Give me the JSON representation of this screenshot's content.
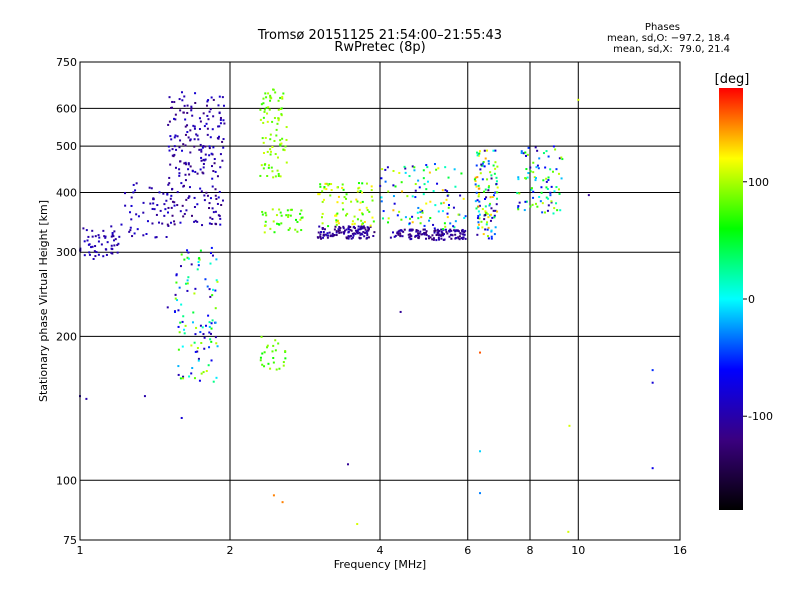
{
  "header": {
    "title_line1": "Tromsø 20151125 21:54:00–21:55:43",
    "title_line2": "RwPretec (8p)"
  },
  "stats": {
    "heading": "Phases",
    "line_o": "mean, sd,O: −97.2, 18.4",
    "line_x": "mean, sd,X:  79.0, 21.4"
  },
  "colorbar": {
    "unit_label": "[deg]",
    "range": [
      -180,
      180
    ],
    "ticks": [
      100,
      0,
      -100
    ],
    "colors": [
      "#000000",
      "#3a0080",
      "#0000ff",
      "#00ffff",
      "#00ff00",
      "#ffff00",
      "#ff0000"
    ]
  },
  "chart_data": {
    "type": "scatter",
    "title": "Tromsø 20151125 21:54:00–21:55:43",
    "subtitle": "RwPretec (8p)",
    "xlabel": "Frequency [MHz]",
    "ylabel": "Stationary phase Virtual Height [km]",
    "xscale": "log",
    "yscale": "log",
    "xlim": [
      1,
      16
    ],
    "ylim": [
      75,
      750
    ],
    "xticks": [
      1,
      2,
      4,
      6,
      8,
      10,
      16
    ],
    "yticks": [
      75,
      100,
      200,
      300,
      400,
      500,
      600,
      750
    ],
    "grid": true,
    "color_by": "phase [deg]",
    "clusters": [
      {
        "x": [
          1.0,
          1.2
        ],
        "y": [
          290,
          340
        ],
        "phase": [
          -110,
          -85
        ],
        "points": 55
      },
      {
        "x": [
          1.2,
          1.5
        ],
        "y": [
          320,
          420
        ],
        "phase": [
          -110,
          -80
        ],
        "points": 50
      },
      {
        "x": [
          1.5,
          1.95
        ],
        "y": [
          340,
          650
        ],
        "phase": [
          -125,
          -80
        ],
        "points": 230
      },
      {
        "x": [
          1.55,
          1.9
        ],
        "y": [
          160,
          310
        ],
        "phase": [
          -110,
          110
        ],
        "points": 110
      },
      {
        "x": [
          2.3,
          2.6
        ],
        "y": [
          430,
          660
        ],
        "phase": [
          70,
          110
        ],
        "points": 85
      },
      {
        "x": [
          2.3,
          2.8
        ],
        "y": [
          330,
          370
        ],
        "phase": [
          60,
          110
        ],
        "points": 40
      },
      {
        "x": [
          2.3,
          2.6
        ],
        "y": [
          170,
          200
        ],
        "phase": [
          60,
          100
        ],
        "points": 25
      },
      {
        "x": [
          3.0,
          3.9
        ],
        "y": [
          320,
          340
        ],
        "phase": [
          -130,
          -90
        ],
        "points": 120
      },
      {
        "x": [
          3.0,
          3.9
        ],
        "y": [
          340,
          420
        ],
        "phase": [
          60,
          130
        ],
        "points": 80
      },
      {
        "x": [
          4.2,
          5.95
        ],
        "y": [
          318,
          335
        ],
        "phase": [
          -130,
          -90
        ],
        "points": 140
      },
      {
        "x": [
          4.0,
          5.95
        ],
        "y": [
          335,
          460
        ],
        "phase": [
          -100,
          140
        ],
        "points": 110
      },
      {
        "x": [
          6.2,
          6.9
        ],
        "y": [
          320,
          490
        ],
        "phase": [
          -130,
          150
        ],
        "points": 120
      },
      {
        "x": [
          7.5,
          9.3
        ],
        "y": [
          360,
          500
        ],
        "phase": [
          -110,
          110
        ],
        "points": 90
      }
    ],
    "isolated_points": [
      {
        "x": 1.0,
        "y": 150,
        "phase": -100
      },
      {
        "x": 1.03,
        "y": 148,
        "phase": -100
      },
      {
        "x": 1.35,
        "y": 150,
        "phase": -100
      },
      {
        "x": 1.5,
        "y": 230,
        "phase": -100
      },
      {
        "x": 1.6,
        "y": 135,
        "phase": -80
      },
      {
        "x": 2.45,
        "y": 93,
        "phase": 150
      },
      {
        "x": 2.55,
        "y": 90,
        "phase": 150
      },
      {
        "x": 3.45,
        "y": 108,
        "phase": -110
      },
      {
        "x": 3.6,
        "y": 81,
        "phase": 110
      },
      {
        "x": 4.4,
        "y": 225,
        "phase": -110
      },
      {
        "x": 6.35,
        "y": 115,
        "phase": -10
      },
      {
        "x": 6.35,
        "y": 94,
        "phase": -30
      },
      {
        "x": 6.35,
        "y": 185,
        "phase": 160
      },
      {
        "x": 9.55,
        "y": 78,
        "phase": 110
      },
      {
        "x": 9.6,
        "y": 130,
        "phase": 110
      },
      {
        "x": 10.0,
        "y": 625,
        "phase": 110
      },
      {
        "x": 10.5,
        "y": 395,
        "phase": -110
      },
      {
        "x": 14.1,
        "y": 170,
        "phase": -50
      },
      {
        "x": 14.1,
        "y": 160,
        "phase": -80
      },
      {
        "x": 14.1,
        "y": 106,
        "phase": -70
      }
    ]
  }
}
